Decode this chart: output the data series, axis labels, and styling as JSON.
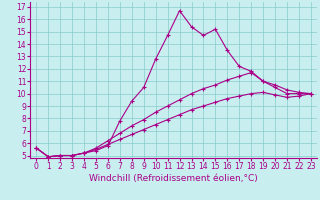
{
  "title": "",
  "xlabel": "Windchill (Refroidissement éolien,°C)",
  "ylabel": "",
  "bg_color": "#c8eef0",
  "line_color": "#aa0088",
  "grid_color": "#88cccc",
  "xlim": [
    -0.5,
    23.5
  ],
  "ylim": [
    4.8,
    17.4
  ],
  "xticks": [
    0,
    1,
    2,
    3,
    4,
    5,
    6,
    7,
    8,
    9,
    10,
    11,
    12,
    13,
    14,
    15,
    16,
    17,
    18,
    19,
    20,
    21,
    22,
    23
  ],
  "yticks": [
    5,
    6,
    7,
    8,
    9,
    10,
    11,
    12,
    13,
    14,
    15,
    16,
    17
  ],
  "line1_x": [
    0,
    1,
    2,
    3,
    4,
    5,
    6,
    7,
    8,
    9,
    10,
    11,
    12,
    13,
    14,
    15,
    16,
    17,
    18,
    19,
    20,
    21,
    22,
    23
  ],
  "line1_y": [
    5.6,
    4.9,
    5.0,
    5.0,
    5.2,
    5.4,
    5.8,
    7.8,
    9.4,
    10.5,
    12.8,
    14.7,
    16.7,
    15.4,
    14.7,
    15.2,
    13.5,
    12.2,
    11.8,
    11.0,
    10.5,
    10.0,
    10.0,
    10.0
  ],
  "line2_x": [
    0,
    1,
    2,
    3,
    4,
    5,
    6,
    7,
    8,
    9,
    10,
    11,
    12,
    13,
    14,
    15,
    16,
    17,
    18,
    19,
    20,
    21,
    22,
    23
  ],
  "line2_y": [
    5.6,
    4.9,
    5.0,
    5.0,
    5.2,
    5.6,
    6.2,
    6.8,
    7.4,
    7.9,
    8.5,
    9.0,
    9.5,
    10.0,
    10.4,
    10.7,
    11.1,
    11.4,
    11.7,
    11.0,
    10.7,
    10.3,
    10.1,
    10.0
  ],
  "line3_x": [
    0,
    1,
    2,
    3,
    4,
    5,
    6,
    7,
    8,
    9,
    10,
    11,
    12,
    13,
    14,
    15,
    16,
    17,
    18,
    19,
    20,
    21,
    22,
    23
  ],
  "line3_y": [
    5.6,
    4.9,
    5.0,
    5.0,
    5.2,
    5.5,
    5.9,
    6.3,
    6.7,
    7.1,
    7.5,
    7.9,
    8.3,
    8.7,
    9.0,
    9.3,
    9.6,
    9.8,
    10.0,
    10.1,
    9.9,
    9.7,
    9.8,
    10.0
  ],
  "xlabel_fontsize": 6.5,
  "tick_fontsize": 5.5,
  "marker": "+"
}
